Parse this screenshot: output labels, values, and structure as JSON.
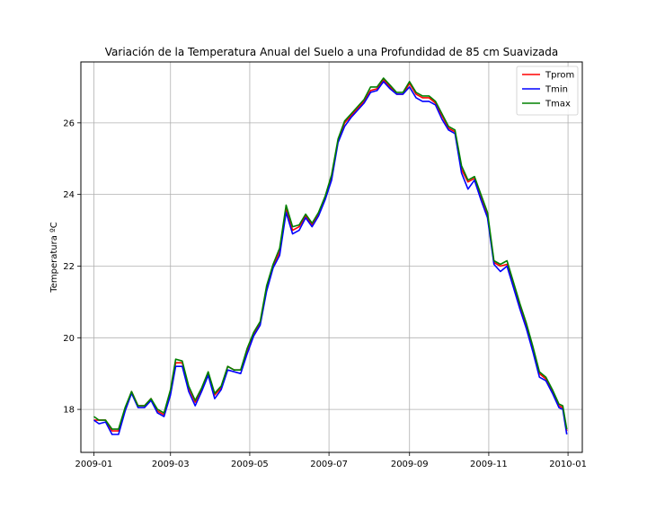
{
  "chart_data": {
    "type": "line",
    "title": "Variación de la Temperatura Anual del Suelo a una Profundidad de 85 cm Suavizada",
    "xlabel": "",
    "ylabel": "Temperatura ºC",
    "x_range": [
      "2008-12-22",
      "2010-01-12"
    ],
    "ylim": [
      16.8,
      27.7
    ],
    "x_ticks": [
      "2009-01",
      "2009-03",
      "2009-05",
      "2009-07",
      "2009-09",
      "2009-11",
      "2010-01"
    ],
    "y_ticks": [
      18,
      20,
      22,
      24,
      26
    ],
    "grid": true,
    "legend_position": "top-right",
    "series": [
      {
        "name": "Tprom",
        "color": "#ff0000",
        "points": [
          [
            "2009-01-01",
            17.7
          ],
          [
            "2009-01-05",
            17.7
          ],
          [
            "2009-01-10",
            17.7
          ],
          [
            "2009-01-15",
            17.4
          ],
          [
            "2009-01-20",
            17.4
          ],
          [
            "2009-01-25",
            18.0
          ],
          [
            "2009-01-30",
            18.5
          ],
          [
            "2009-02-04",
            18.1
          ],
          [
            "2009-02-09",
            18.1
          ],
          [
            "2009-02-14",
            18.3
          ],
          [
            "2009-02-19",
            17.95
          ],
          [
            "2009-02-24",
            17.85
          ],
          [
            "2009-03-01",
            18.5
          ],
          [
            "2009-03-05",
            19.3
          ],
          [
            "2009-03-10",
            19.3
          ],
          [
            "2009-03-15",
            18.6
          ],
          [
            "2009-03-20",
            18.2
          ],
          [
            "2009-03-25",
            18.55
          ],
          [
            "2009-03-30",
            19.0
          ],
          [
            "2009-04-04",
            18.4
          ],
          [
            "2009-04-09",
            18.6
          ],
          [
            "2009-04-14",
            19.2
          ],
          [
            "2009-04-19",
            19.1
          ],
          [
            "2009-04-24",
            19.1
          ],
          [
            "2009-04-29",
            19.6
          ],
          [
            "2009-05-04",
            20.1
          ],
          [
            "2009-05-09",
            20.4
          ],
          [
            "2009-05-14",
            21.4
          ],
          [
            "2009-05-19",
            22.0
          ],
          [
            "2009-05-24",
            22.4
          ],
          [
            "2009-05-29",
            23.6
          ],
          [
            "2009-06-03",
            23.0
          ],
          [
            "2009-06-08",
            23.1
          ],
          [
            "2009-06-13",
            23.4
          ],
          [
            "2009-06-18",
            23.15
          ],
          [
            "2009-06-23",
            23.45
          ],
          [
            "2009-06-28",
            23.9
          ],
          [
            "2009-07-03",
            24.5
          ],
          [
            "2009-07-08",
            25.5
          ],
          [
            "2009-07-13",
            26.0
          ],
          [
            "2009-07-18",
            26.2
          ],
          [
            "2009-07-23",
            26.4
          ],
          [
            "2009-07-28",
            26.6
          ],
          [
            "2009-08-02",
            26.9
          ],
          [
            "2009-08-07",
            26.95
          ],
          [
            "2009-08-12",
            27.2
          ],
          [
            "2009-08-17",
            27.0
          ],
          [
            "2009-08-22",
            26.8
          ],
          [
            "2009-08-27",
            26.8
          ],
          [
            "2009-09-01",
            27.1
          ],
          [
            "2009-09-06",
            26.8
          ],
          [
            "2009-09-11",
            26.7
          ],
          [
            "2009-09-16",
            26.7
          ],
          [
            "2009-09-21",
            26.55
          ],
          [
            "2009-09-26",
            26.2
          ],
          [
            "2009-10-01",
            25.85
          ],
          [
            "2009-10-06",
            25.75
          ],
          [
            "2009-10-11",
            24.7
          ],
          [
            "2009-10-16",
            24.35
          ],
          [
            "2009-10-21",
            24.45
          ],
          [
            "2009-10-26",
            23.9
          ],
          [
            "2009-10-31",
            23.4
          ],
          [
            "2009-11-05",
            22.1
          ],
          [
            "2009-11-10",
            22.0
          ],
          [
            "2009-11-15",
            22.05
          ],
          [
            "2009-11-20",
            21.5
          ],
          [
            "2009-11-25",
            20.9
          ],
          [
            "2009-11-30",
            20.3
          ],
          [
            "2009-12-05",
            19.7
          ],
          [
            "2009-12-10",
            19.0
          ],
          [
            "2009-12-15",
            18.85
          ],
          [
            "2009-12-20",
            18.5
          ],
          [
            "2009-12-25",
            18.1
          ],
          [
            "2009-12-28",
            18.05
          ],
          [
            "2009-12-31",
            17.4
          ]
        ]
      },
      {
        "name": "Tmin",
        "color": "#0000ff",
        "points": [
          [
            "2009-01-01",
            17.7
          ],
          [
            "2009-01-05",
            17.6
          ],
          [
            "2009-01-10",
            17.65
          ],
          [
            "2009-01-15",
            17.3
          ],
          [
            "2009-01-20",
            17.3
          ],
          [
            "2009-01-25",
            17.95
          ],
          [
            "2009-01-30",
            18.45
          ],
          [
            "2009-02-04",
            18.05
          ],
          [
            "2009-02-09",
            18.05
          ],
          [
            "2009-02-14",
            18.25
          ],
          [
            "2009-02-19",
            17.9
          ],
          [
            "2009-02-24",
            17.8
          ],
          [
            "2009-03-01",
            18.4
          ],
          [
            "2009-03-05",
            19.2
          ],
          [
            "2009-03-10",
            19.2
          ],
          [
            "2009-03-15",
            18.5
          ],
          [
            "2009-03-20",
            18.1
          ],
          [
            "2009-03-25",
            18.5
          ],
          [
            "2009-03-30",
            18.95
          ],
          [
            "2009-04-04",
            18.3
          ],
          [
            "2009-04-09",
            18.55
          ],
          [
            "2009-04-14",
            19.1
          ],
          [
            "2009-04-19",
            19.05
          ],
          [
            "2009-04-24",
            19.0
          ],
          [
            "2009-04-29",
            19.55
          ],
          [
            "2009-05-04",
            20.05
          ],
          [
            "2009-05-09",
            20.35
          ],
          [
            "2009-05-14",
            21.3
          ],
          [
            "2009-05-19",
            21.95
          ],
          [
            "2009-05-24",
            22.3
          ],
          [
            "2009-05-29",
            23.5
          ],
          [
            "2009-06-03",
            22.9
          ],
          [
            "2009-06-08",
            23.0
          ],
          [
            "2009-06-13",
            23.35
          ],
          [
            "2009-06-18",
            23.1
          ],
          [
            "2009-06-23",
            23.4
          ],
          [
            "2009-06-28",
            23.85
          ],
          [
            "2009-07-03",
            24.4
          ],
          [
            "2009-07-08",
            25.45
          ],
          [
            "2009-07-13",
            25.9
          ],
          [
            "2009-07-18",
            26.15
          ],
          [
            "2009-07-23",
            26.35
          ],
          [
            "2009-07-28",
            26.55
          ],
          [
            "2009-08-02",
            26.85
          ],
          [
            "2009-08-07",
            26.9
          ],
          [
            "2009-08-12",
            27.15
          ],
          [
            "2009-08-17",
            26.95
          ],
          [
            "2009-08-22",
            26.8
          ],
          [
            "2009-08-27",
            26.8
          ],
          [
            "2009-09-01",
            27.0
          ],
          [
            "2009-09-06",
            26.7
          ],
          [
            "2009-09-11",
            26.6
          ],
          [
            "2009-09-16",
            26.6
          ],
          [
            "2009-09-21",
            26.5
          ],
          [
            "2009-09-26",
            26.1
          ],
          [
            "2009-10-01",
            25.8
          ],
          [
            "2009-10-06",
            25.7
          ],
          [
            "2009-10-11",
            24.6
          ],
          [
            "2009-10-16",
            24.15
          ],
          [
            "2009-10-21",
            24.4
          ],
          [
            "2009-10-26",
            23.85
          ],
          [
            "2009-10-31",
            23.35
          ],
          [
            "2009-11-05",
            22.05
          ],
          [
            "2009-11-10",
            21.85
          ],
          [
            "2009-11-15",
            22.0
          ],
          [
            "2009-11-20",
            21.4
          ],
          [
            "2009-11-25",
            20.8
          ],
          [
            "2009-11-30",
            20.25
          ],
          [
            "2009-12-05",
            19.6
          ],
          [
            "2009-12-10",
            18.9
          ],
          [
            "2009-12-15",
            18.8
          ],
          [
            "2009-12-20",
            18.45
          ],
          [
            "2009-12-25",
            18.05
          ],
          [
            "2009-12-28",
            18.0
          ],
          [
            "2009-12-31",
            17.3
          ]
        ]
      },
      {
        "name": "Tmax",
        "color": "#008000",
        "points": [
          [
            "2009-01-01",
            17.8
          ],
          [
            "2009-01-05",
            17.7
          ],
          [
            "2009-01-10",
            17.7
          ],
          [
            "2009-01-15",
            17.45
          ],
          [
            "2009-01-20",
            17.45
          ],
          [
            "2009-01-25",
            18.05
          ],
          [
            "2009-01-30",
            18.5
          ],
          [
            "2009-02-04",
            18.1
          ],
          [
            "2009-02-09",
            18.1
          ],
          [
            "2009-02-14",
            18.3
          ],
          [
            "2009-02-19",
            18.0
          ],
          [
            "2009-02-24",
            17.9
          ],
          [
            "2009-03-01",
            18.55
          ],
          [
            "2009-03-05",
            19.4
          ],
          [
            "2009-03-10",
            19.35
          ],
          [
            "2009-03-15",
            18.65
          ],
          [
            "2009-03-20",
            18.25
          ],
          [
            "2009-03-25",
            18.6
          ],
          [
            "2009-03-30",
            19.05
          ],
          [
            "2009-04-04",
            18.45
          ],
          [
            "2009-04-09",
            18.65
          ],
          [
            "2009-04-14",
            19.2
          ],
          [
            "2009-04-19",
            19.1
          ],
          [
            "2009-04-24",
            19.1
          ],
          [
            "2009-04-29",
            19.7
          ],
          [
            "2009-05-04",
            20.15
          ],
          [
            "2009-05-09",
            20.45
          ],
          [
            "2009-05-14",
            21.45
          ],
          [
            "2009-05-19",
            22.05
          ],
          [
            "2009-05-24",
            22.5
          ],
          [
            "2009-05-29",
            23.7
          ],
          [
            "2009-06-03",
            23.1
          ],
          [
            "2009-06-08",
            23.15
          ],
          [
            "2009-06-13",
            23.45
          ],
          [
            "2009-06-18",
            23.2
          ],
          [
            "2009-06-23",
            23.5
          ],
          [
            "2009-06-28",
            23.95
          ],
          [
            "2009-07-03",
            24.55
          ],
          [
            "2009-07-08",
            25.55
          ],
          [
            "2009-07-13",
            26.05
          ],
          [
            "2009-07-18",
            26.25
          ],
          [
            "2009-07-23",
            26.45
          ],
          [
            "2009-07-28",
            26.65
          ],
          [
            "2009-08-02",
            27.0
          ],
          [
            "2009-08-07",
            27.0
          ],
          [
            "2009-08-12",
            27.25
          ],
          [
            "2009-08-17",
            27.05
          ],
          [
            "2009-08-22",
            26.85
          ],
          [
            "2009-08-27",
            26.85
          ],
          [
            "2009-09-01",
            27.15
          ],
          [
            "2009-09-06",
            26.85
          ],
          [
            "2009-09-11",
            26.75
          ],
          [
            "2009-09-16",
            26.75
          ],
          [
            "2009-09-21",
            26.6
          ],
          [
            "2009-09-26",
            26.25
          ],
          [
            "2009-10-01",
            25.9
          ],
          [
            "2009-10-06",
            25.8
          ],
          [
            "2009-10-11",
            24.8
          ],
          [
            "2009-10-16",
            24.4
          ],
          [
            "2009-10-21",
            24.5
          ],
          [
            "2009-10-26",
            24.0
          ],
          [
            "2009-10-31",
            23.5
          ],
          [
            "2009-11-05",
            22.15
          ],
          [
            "2009-11-10",
            22.05
          ],
          [
            "2009-11-15",
            22.15
          ],
          [
            "2009-11-20",
            21.55
          ],
          [
            "2009-11-25",
            20.95
          ],
          [
            "2009-11-30",
            20.4
          ],
          [
            "2009-12-05",
            19.75
          ],
          [
            "2009-12-10",
            19.05
          ],
          [
            "2009-12-15",
            18.9
          ],
          [
            "2009-12-20",
            18.55
          ],
          [
            "2009-12-25",
            18.15
          ],
          [
            "2009-12-28",
            18.1
          ],
          [
            "2009-12-31",
            17.45
          ]
        ]
      }
    ]
  }
}
